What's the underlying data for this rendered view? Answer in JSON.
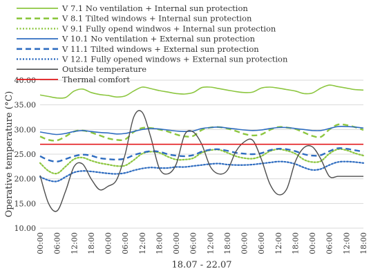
{
  "chart_data": {
    "type": "line",
    "xlabel": "18.07 - 22.07",
    "ylabel": "Operative temperature (°C)",
    "ylim": [
      10,
      40
    ],
    "yticks": [
      "10.00",
      "15.00",
      "20.00",
      "25.00",
      "30.00",
      "35.00",
      "40.00"
    ],
    "x_tick_labels": [
      "00:00",
      "06:00",
      "12:00",
      "18:00",
      "00:00",
      "06:00",
      "12:00",
      "18:00",
      "00:00",
      "06:00",
      "12:00",
      "18:00",
      "00:00",
      "06:00",
      "12:00",
      "18:00",
      "00:00",
      "06:00",
      "12:00",
      "18:00"
    ],
    "x_hours": [
      0,
      3,
      6,
      9,
      12,
      15,
      18,
      21,
      24,
      27,
      30,
      33,
      36,
      39,
      42,
      45,
      48,
      51,
      54,
      57,
      60,
      63,
      66,
      69,
      72,
      75,
      78,
      81,
      84,
      87,
      90,
      93,
      96,
      99,
      102,
      105,
      108,
      111,
      114
    ],
    "grid": "horizontal",
    "legend_position": "top",
    "series": [
      {
        "name": "V 7.1 No ventilation + Internal sun protection",
        "color": "#8cc63f",
        "dash": "solid",
        "values": [
          37.0,
          36.7,
          36.4,
          36.5,
          37.8,
          38.2,
          37.5,
          37.1,
          36.9,
          36.6,
          36.8,
          37.8,
          38.6,
          38.3,
          37.9,
          37.6,
          37.3,
          37.2,
          37.5,
          38.5,
          38.6,
          38.3,
          38.0,
          37.7,
          37.5,
          37.6,
          38.4,
          38.6,
          38.4,
          38.1,
          37.8,
          37.3,
          37.4,
          38.4,
          39.0,
          38.7,
          38.4,
          38.1,
          38.0
        ]
      },
      {
        "name": "V 8.1 Tilted windows + Internal sun protection",
        "color": "#8cc63f",
        "dash": "dashed",
        "values": [
          28.6,
          27.9,
          27.8,
          28.6,
          29.6,
          29.8,
          29.4,
          28.8,
          28.2,
          27.9,
          28.0,
          29.5,
          30.3,
          30.3,
          30.0,
          29.6,
          29.0,
          28.6,
          28.7,
          29.9,
          30.4,
          30.5,
          30.2,
          29.7,
          29.1,
          28.8,
          29.0,
          29.9,
          30.5,
          30.4,
          30.1,
          29.4,
          28.7,
          28.5,
          30.0,
          31.0,
          30.9,
          30.5,
          29.9
        ]
      },
      {
        "name": "V 9.1 Fully opend windwos + Internal sun protection",
        "color": "#8cc63f",
        "dash": "dotted",
        "values": [
          23.2,
          21.6,
          21.1,
          22.5,
          24.0,
          24.3,
          23.7,
          23.2,
          22.9,
          22.6,
          22.7,
          23.8,
          25.1,
          25.5,
          25.3,
          24.5,
          23.9,
          23.9,
          24.2,
          25.3,
          25.8,
          25.9,
          25.3,
          24.6,
          24.2,
          24.1,
          24.6,
          25.6,
          26.0,
          25.7,
          25.1,
          23.9,
          23.4,
          23.6,
          25.1,
          26.0,
          25.8,
          25.2,
          24.7
        ]
      },
      {
        "name": "V 10.1 No ventilation + External sun protection",
        "color": "#2e6cc0",
        "dash": "solid",
        "values": [
          29.5,
          29.2,
          29.0,
          29.2,
          29.6,
          29.8,
          29.6,
          29.4,
          29.3,
          29.1,
          29.2,
          29.6,
          30.0,
          30.2,
          30.1,
          29.9,
          29.7,
          29.6,
          29.7,
          30.2,
          30.4,
          30.5,
          30.3,
          30.1,
          29.9,
          29.8,
          29.9,
          30.2,
          30.4,
          30.4,
          30.2,
          30.0,
          29.8,
          29.8,
          30.2,
          30.6,
          30.6,
          30.5,
          30.3
        ]
      },
      {
        "name": "V 11.1 Tilted windows + External sun protection",
        "color": "#2e6cc0",
        "dash": "dashed",
        "values": [
          24.6,
          23.8,
          23.5,
          24.0,
          24.6,
          24.9,
          24.7,
          24.2,
          24.0,
          23.9,
          24.1,
          24.8,
          25.3,
          25.6,
          25.5,
          25.0,
          24.7,
          24.6,
          24.8,
          25.5,
          25.9,
          26.0,
          25.7,
          25.3,
          25.1,
          25.0,
          25.2,
          25.8,
          26.1,
          26.0,
          25.6,
          25.0,
          24.7,
          24.8,
          25.6,
          26.2,
          26.1,
          25.8,
          25.5
        ]
      },
      {
        "name": "V 12.1 Fully opened windows + External sun protection",
        "color": "#2e6cc0",
        "dash": "dotted",
        "values": [
          20.4,
          19.7,
          19.5,
          20.4,
          21.3,
          21.6,
          21.5,
          21.3,
          21.1,
          21.0,
          21.2,
          21.7,
          22.1,
          22.3,
          22.2,
          22.2,
          22.4,
          22.4,
          22.6,
          22.8,
          23.0,
          23.1,
          22.9,
          22.8,
          22.8,
          22.9,
          23.1,
          23.3,
          23.5,
          23.4,
          23.0,
          22.3,
          21.8,
          22.0,
          22.8,
          23.4,
          23.5,
          23.4,
          23.2
        ]
      },
      {
        "name": "Outside temperature",
        "color": "#4d4d4d",
        "dash": "solid",
        "values": [
          20.7,
          15.0,
          13.5,
          17.5,
          22.5,
          23.0,
          20.0,
          17.8,
          18.5,
          19.8,
          25.0,
          32.5,
          33.5,
          28.5,
          22.2,
          21.0,
          23.0,
          29.0,
          29.5,
          27.0,
          22.5,
          21.0,
          21.7,
          25.5,
          27.5,
          27.8,
          24.0,
          19.0,
          16.8,
          18.0,
          23.5,
          26.3,
          26.5,
          24.0,
          20.5,
          20.5,
          20.5,
          20.5,
          20.5
        ]
      },
      {
        "name": "Thermal comfort",
        "color": "#e31a1c",
        "dash": "solid",
        "values": [
          27,
          27
        ]
      }
    ]
  }
}
